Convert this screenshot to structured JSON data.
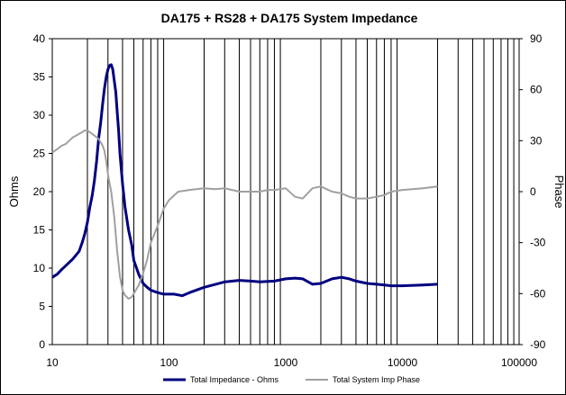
{
  "chart_data": {
    "type": "line",
    "title": "DA175 + RS28 + DA175  System Impedance",
    "xscale": "log",
    "xlim": [
      10,
      100000
    ],
    "x_ticks": [
      "10",
      "100",
      "1000",
      "10000",
      "100000"
    ],
    "ylabel": "Ohms",
    "ylim": [
      0,
      40
    ],
    "y_ticks": [
      "0",
      "5",
      "10",
      "15",
      "20",
      "25",
      "30",
      "35",
      "40"
    ],
    "y2label": "Phase",
    "y2lim": [
      -90,
      90
    ],
    "y2_ticks": [
      "-90",
      "-60",
      "-30",
      "0",
      "30",
      "60",
      "90"
    ],
    "grid": "vertical log gridlines",
    "legend_position": "bottom",
    "series": [
      {
        "name": "Total Impedance - Ohms",
        "axis": "left",
        "color": "#000080",
        "x": [
          10,
          11,
          12,
          13,
          15,
          17,
          18,
          19,
          20,
          21,
          22,
          23,
          24,
          25,
          26,
          27,
          28,
          29,
          30,
          31,
          32,
          33,
          34,
          35,
          36,
          37,
          38,
          40,
          42,
          45,
          48,
          50,
          55,
          60,
          65,
          70,
          80,
          90,
          100,
          110,
          120,
          130,
          150,
          200,
          300,
          400,
          500,
          600,
          800,
          1000,
          1200,
          1400,
          1700,
          2000,
          2500,
          3000,
          3500,
          4000,
          5000,
          6000,
          7000,
          8000,
          10000,
          15000,
          20000
        ],
        "values": [
          8.8,
          9.2,
          9.8,
          10.3,
          11.2,
          12.2,
          13.3,
          14.5,
          16.0,
          18.0,
          19.5,
          21.5,
          24.0,
          27.0,
          29.0,
          31.5,
          33.5,
          35.0,
          36.0,
          36.5,
          36.6,
          36.0,
          34.5,
          33.0,
          30.5,
          28.0,
          25.0,
          21.0,
          18.0,
          15.0,
          13.0,
          11.0,
          9.2,
          8.0,
          7.5,
          7.1,
          6.8,
          6.6,
          6.6,
          6.6,
          6.5,
          6.4,
          6.8,
          7.5,
          8.2,
          8.4,
          8.3,
          8.2,
          8.3,
          8.6,
          8.7,
          8.6,
          7.9,
          8.0,
          8.6,
          8.8,
          8.6,
          8.3,
          8.0,
          7.9,
          7.8,
          7.7,
          7.7,
          7.8,
          7.9
        ]
      },
      {
        "name": "Total System Imp Phase",
        "axis": "right",
        "color": "#a0a0a0",
        "x": [
          10,
          11,
          12,
          13,
          14,
          15,
          16,
          17,
          18,
          19,
          20,
          21,
          22,
          23,
          24,
          25,
          26,
          27,
          28,
          29,
          30,
          32,
          34,
          36,
          38,
          40,
          42,
          45,
          48,
          50,
          55,
          60,
          65,
          70,
          80,
          90,
          100,
          120,
          150,
          200,
          250,
          300,
          400,
          500,
          600,
          700,
          800,
          1000,
          1200,
          1400,
          1700,
          2000,
          2500,
          3000,
          3500,
          4000,
          5000,
          6000,
          7000,
          8000,
          10000,
          15000,
          20000
        ],
        "values": [
          23,
          25,
          27,
          28,
          30,
          32,
          33,
          34,
          35,
          36,
          36,
          35,
          34,
          33,
          32,
          31,
          29,
          27,
          24,
          18,
          10,
          0,
          -15,
          -35,
          -50,
          -58,
          -61,
          -63,
          -62,
          -60,
          -55,
          -48,
          -40,
          -30,
          -20,
          -10,
          -5,
          0,
          1,
          2,
          1.5,
          2,
          0,
          0,
          0,
          1,
          1,
          2,
          -3,
          -4,
          2,
          3,
          0,
          -1,
          -3,
          -4,
          -4,
          -3,
          -2,
          0,
          1,
          2,
          3
        ]
      }
    ]
  }
}
